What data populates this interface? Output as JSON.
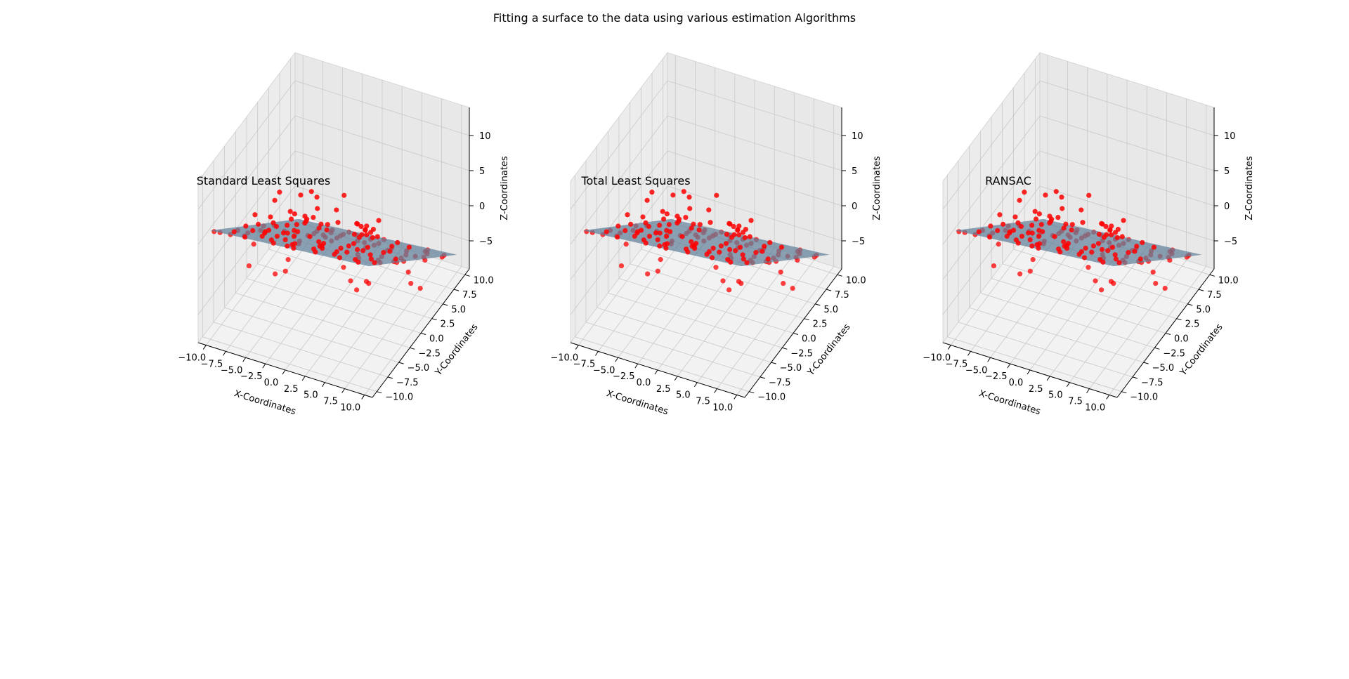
{
  "figure": {
    "suptitle": "Fitting a surface to the data using various estimation Algorithms"
  },
  "colors": {
    "points": "#ff0000",
    "surface": "#5f7f9a",
    "pane_bottom": "#f2f2f2",
    "pane_back": "#e8e8e8",
    "pane_side": "#ececec",
    "grid": "#c8c8c8"
  },
  "chart_data": [
    {
      "type": "scatter3d",
      "title": "Standard Least Squares",
      "xlabel": "X-Coordinates",
      "ylabel": "Y-Coordinates",
      "zlabel": "Z-Coordinates",
      "xlim": [
        -11,
        11
      ],
      "ylim": [
        -11,
        11
      ],
      "zlim": [
        -9,
        14
      ],
      "xticks": [
        "−10.0",
        "−7.5",
        "−5.0",
        "−2.5",
        "0.0",
        "2.5",
        "5.0",
        "7.5",
        "10.0"
      ],
      "yticks": [
        "−10.0",
        "−7.5",
        "−5.0",
        "−2.5",
        "0.0",
        "2.5",
        "5.0",
        "7.5",
        "10.0"
      ],
      "zticks": [
        "−5",
        "0",
        "5",
        "10"
      ],
      "surface": {
        "a": 0.1,
        "b": -0.75,
        "c": 0.0
      },
      "grid": true
    },
    {
      "type": "scatter3d",
      "title": "Total Least Squares",
      "xlabel": "X-Coordinates",
      "ylabel": "Y-Coordinates",
      "zlabel": "Z-Coordinates",
      "xlim": [
        -11,
        11
      ],
      "ylim": [
        -11,
        11
      ],
      "zlim": [
        -9,
        14
      ],
      "xticks": [
        "−10.0",
        "−7.5",
        "−5.0",
        "−2.5",
        "0.0",
        "2.5",
        "5.0",
        "7.5",
        "10.0"
      ],
      "yticks": [
        "−10.0",
        "−7.5",
        "−5.0",
        "−2.5",
        "0.0",
        "2.5",
        "5.0",
        "7.5",
        "10.0"
      ],
      "zticks": [
        "−5",
        "0",
        "5",
        "10"
      ],
      "surface": {
        "a": 0.1,
        "b": -0.75,
        "c": 0.0
      },
      "grid": true
    },
    {
      "type": "scatter3d",
      "title": "RANSAC",
      "xlabel": "X-Coordinates",
      "ylabel": "Y-Coordinates",
      "zlabel": "Z-Coordinates",
      "xlim": [
        -11,
        11
      ],
      "ylim": [
        -11,
        11
      ],
      "zlim": [
        -9,
        14
      ],
      "xticks": [
        "−10.0",
        "−7.5",
        "−5.0",
        "−2.5",
        "0.0",
        "2.5",
        "5.0",
        "7.5",
        "10.0"
      ],
      "yticks": [
        "−10.0",
        "−7.5",
        "−5.0",
        "−2.5",
        "0.0",
        "2.5",
        "5.0",
        "7.5",
        "10.0"
      ],
      "zticks": [
        "−5",
        "0",
        "5",
        "10"
      ],
      "surface": {
        "a": 0.1,
        "b": -0.75,
        "c": 0.0
      },
      "grid": true
    }
  ],
  "points": [
    [
      -9.5,
      8.2,
      -6.1
    ],
    [
      -8.7,
      9.1,
      -6.9
    ],
    [
      -9.1,
      6.5,
      -4.2
    ],
    [
      -7.8,
      7.9,
      -6.0
    ],
    [
      -8.2,
      5.1,
      -3.8
    ],
    [
      -7.1,
      6.2,
      -4.9
    ],
    [
      -6.5,
      8.8,
      -7.0
    ],
    [
      -9.8,
      3.9,
      -3.9
    ],
    [
      -6.9,
      4.0,
      -3.2
    ],
    [
      -5.8,
      7.1,
      -5.9
    ],
    [
      -8.9,
      2.5,
      -2.8
    ],
    [
      -7.5,
      2.9,
      -2.6
    ],
    [
      -5.2,
      5.5,
      -4.8
    ],
    [
      -6.1,
      2.0,
      -2.1
    ],
    [
      -4.8,
      8.3,
      -6.8
    ],
    [
      -9.3,
      0.8,
      -1.6
    ],
    [
      -7.9,
      1.2,
      -1.5
    ],
    [
      -6.4,
      0.3,
      -0.9
    ],
    [
      -4.5,
      3.6,
      -3.3
    ],
    [
      -5.5,
      -0.6,
      -0.1
    ],
    [
      -3.9,
      6.4,
      -5.3
    ],
    [
      -8.6,
      -1.1,
      -0.4
    ],
    [
      -7.2,
      -1.8,
      0.7
    ],
    [
      -4.1,
      1.5,
      -1.7
    ],
    [
      -3.2,
      9.2,
      -7.3
    ],
    [
      -9.6,
      -2.7,
      1.2
    ],
    [
      -6.8,
      -3.3,
      1.9
    ],
    [
      -5.0,
      -2.4,
      1.6
    ],
    [
      -3.6,
      4.1,
      -3.6
    ],
    [
      -2.8,
      7.2,
      -5.8
    ],
    [
      -8.0,
      -4.0,
      2.2
    ],
    [
      -6.0,
      -4.9,
      3.3
    ],
    [
      -4.4,
      -1.0,
      0.3
    ],
    [
      -2.5,
      2.6,
      -2.3
    ],
    [
      -1.9,
      8.6,
      -6.8
    ],
    [
      -9.0,
      -5.6,
      3.2
    ],
    [
      -7.4,
      -6.2,
      3.9
    ],
    [
      -5.3,
      -6.7,
      4.6
    ],
    [
      -3.4,
      -2.9,
      2.1
    ],
    [
      -2.1,
      5.3,
      -4.2
    ],
    [
      -1.2,
      9.6,
      -7.3
    ],
    [
      -8.4,
      -7.5,
      4.8
    ],
    [
      -6.6,
      -8.4,
      5.6
    ],
    [
      -4.7,
      -4.4,
      2.9
    ],
    [
      -2.9,
      -0.2,
      0.0
    ],
    [
      -1.5,
      3.4,
      -2.7
    ],
    [
      -0.6,
      6.9,
      -5.2
    ],
    [
      -9.4,
      -8.9,
      5.5
    ],
    [
      -7.7,
      -9.6,
      6.4
    ],
    [
      -3.8,
      -7.3,
      5.1
    ],
    [
      -2.2,
      -3.8,
      2.6
    ],
    [
      -0.9,
      1.1,
      -1.0
    ],
    [
      0.2,
      8.0,
      -6.1
    ],
    [
      -5.7,
      -9.9,
      7.0
    ],
    [
      -3.1,
      -5.4,
      3.8
    ],
    [
      -1.0,
      -1.6,
      1.1
    ],
    [
      0.4,
      4.7,
      -3.5
    ],
    [
      1.1,
      9.4,
      -7.0
    ],
    [
      -2.6,
      -9.0,
      6.5
    ],
    [
      -1.3,
      -6.5,
      4.8
    ],
    [
      0.0,
      -2.3,
      1.8
    ],
    [
      1.3,
      2.2,
      -1.5
    ],
    [
      2.0,
      6.6,
      -4.9
    ],
    [
      -0.4,
      -8.7,
      6.8
    ],
    [
      0.8,
      -4.6,
      3.6
    ],
    [
      1.9,
      0.0,
      0.2
    ],
    [
      2.6,
      4.5,
      -3.2
    ],
    [
      3.1,
      8.9,
      -6.3
    ],
    [
      0.5,
      -10.0,
      7.7
    ],
    [
      1.6,
      -7.4,
      5.8
    ],
    [
      2.4,
      -2.7,
      2.3
    ],
    [
      3.3,
      1.8,
      -1.0
    ],
    [
      4.0,
      6.0,
      -4.1
    ],
    [
      2.8,
      -9.2,
      7.3
    ],
    [
      3.5,
      -5.6,
      4.6
    ],
    [
      4.2,
      -0.9,
      1.1
    ],
    [
      4.9,
      3.4,
      -2.2
    ],
    [
      5.3,
      7.6,
      -5.1
    ],
    [
      4.6,
      -8.1,
      6.7
    ],
    [
      5.2,
      -3.9,
      3.4
    ],
    [
      5.9,
      0.7,
      0.1
    ],
    [
      6.3,
      5.2,
      -3.3
    ],
    [
      6.8,
      9.1,
      -6.2
    ],
    [
      6.1,
      -9.6,
      8.0
    ],
    [
      6.6,
      -6.2,
      5.3
    ],
    [
      7.0,
      -1.7,
      1.9
    ],
    [
      7.5,
      2.9,
      -1.5
    ],
    [
      7.9,
      7.0,
      -4.6
    ],
    [
      7.4,
      -8.4,
      7.2
    ],
    [
      8.0,
      -4.3,
      3.9
    ],
    [
      8.4,
      0.2,
      0.6
    ],
    [
      8.8,
      4.6,
      -2.8
    ],
    [
      9.2,
      8.5,
      -5.6
    ],
    [
      8.6,
      -9.9,
      8.5
    ],
    [
      9.1,
      -5.8,
      5.2
    ],
    [
      9.5,
      -1.2,
      1.7
    ],
    [
      9.8,
      3.1,
      -1.6
    ],
    [
      9.9,
      6.8,
      -4.2
    ],
    [
      9.6,
      -8.0,
      7.2
    ],
    [
      9.9,
      -3.5,
      3.6
    ],
    [
      -8.1,
      9.5,
      -3.5
    ],
    [
      -6.3,
      7.5,
      -2.0
    ],
    [
      -4.2,
      9.9,
      -3.0
    ],
    [
      -7.0,
      -0.8,
      4.2
    ],
    [
      -5.9,
      3.1,
      2.1
    ],
    [
      -2.4,
      0.6,
      3.5
    ],
    [
      -0.3,
      -4.1,
      6.9
    ],
    [
      1.2,
      -1.2,
      4.3
    ],
    [
      2.9,
      -6.6,
      9.1
    ],
    [
      4.4,
      2.3,
      2.8
    ],
    [
      -9.9,
      5.5,
      -0.9
    ],
    [
      -3.0,
      6.0,
      -1.4
    ],
    [
      0.9,
      3.8,
      -0.2
    ],
    [
      5.6,
      -2.6,
      6.5
    ],
    [
      -6.7,
      1.7,
      -6.2
    ],
    [
      -4.0,
      -6.1,
      -0.8
    ],
    [
      -1.7,
      -7.9,
      1.9
    ],
    [
      3.8,
      -3.0,
      -1.6
    ],
    [
      6.9,
      -7.2,
      1.7
    ],
    [
      -8.8,
      -3.4,
      -3.6
    ],
    [
      -1.1,
      4.2,
      -7.4
    ],
    [
      2.2,
      9.7,
      -10.0
    ],
    [
      7.7,
      5.8,
      -8.6
    ],
    [
      4.8,
      8.3,
      -9.4
    ],
    [
      8.9,
      1.5,
      -3.9
    ],
    [
      -5.1,
      -8.7,
      9.4
    ],
    [
      -2.7,
      -9.5,
      10.6
    ],
    [
      0.3,
      -6.8,
      8.8
    ],
    [
      9.3,
      -9.3,
      5.5
    ],
    [
      7.2,
      -5.0,
      0.9
    ],
    [
      8.2,
      -7.6,
      11.0
    ],
    [
      9.0,
      -9.0,
      12.5
    ],
    [
      7.8,
      -8.8,
      12.8
    ],
    [
      8.5,
      -6.9,
      10.2
    ],
    [
      9.4,
      -7.9,
      11.8
    ],
    [
      8.0,
      -9.7,
      12.1
    ],
    [
      9.7,
      -8.6,
      11.3
    ],
    [
      7.6,
      -7.3,
      9.9
    ],
    [
      8.7,
      -9.4,
      13.2
    ],
    [
      9.2,
      -6.6,
      9.6
    ],
    [
      -9.7,
      -9.7,
      6.2
    ],
    [
      -8.3,
      -2.2,
      1.5
    ],
    [
      -6.2,
      -7.0,
      3.4
    ],
    [
      -4.6,
      6.7,
      -5.4
    ],
    [
      -3.5,
      -1.9,
      1.9
    ],
    [
      -1.8,
      -4.7,
      3.1
    ],
    [
      -0.7,
      -9.3,
      7.0
    ],
    [
      0.6,
      5.9,
      -4.7
    ],
    [
      1.4,
      -5.2,
      4.4
    ],
    [
      2.3,
      3.1,
      -2.5
    ],
    [
      3.0,
      -8.0,
      6.9
    ],
    [
      3.7,
      -1.3,
      1.4
    ],
    [
      4.5,
      5.0,
      -3.4
    ],
    [
      5.0,
      -6.0,
      5.4
    ],
    [
      5.7,
      2.5,
      -1.3
    ],
    [
      6.4,
      -3.2,
      3.2
    ],
    [
      7.1,
      8.0,
      -5.4
    ],
    [
      7.8,
      -5.5,
      5.0
    ],
    [
      8.3,
      3.6,
      -2.0
    ],
    [
      9.0,
      -2.1,
      2.6
    ]
  ]
}
